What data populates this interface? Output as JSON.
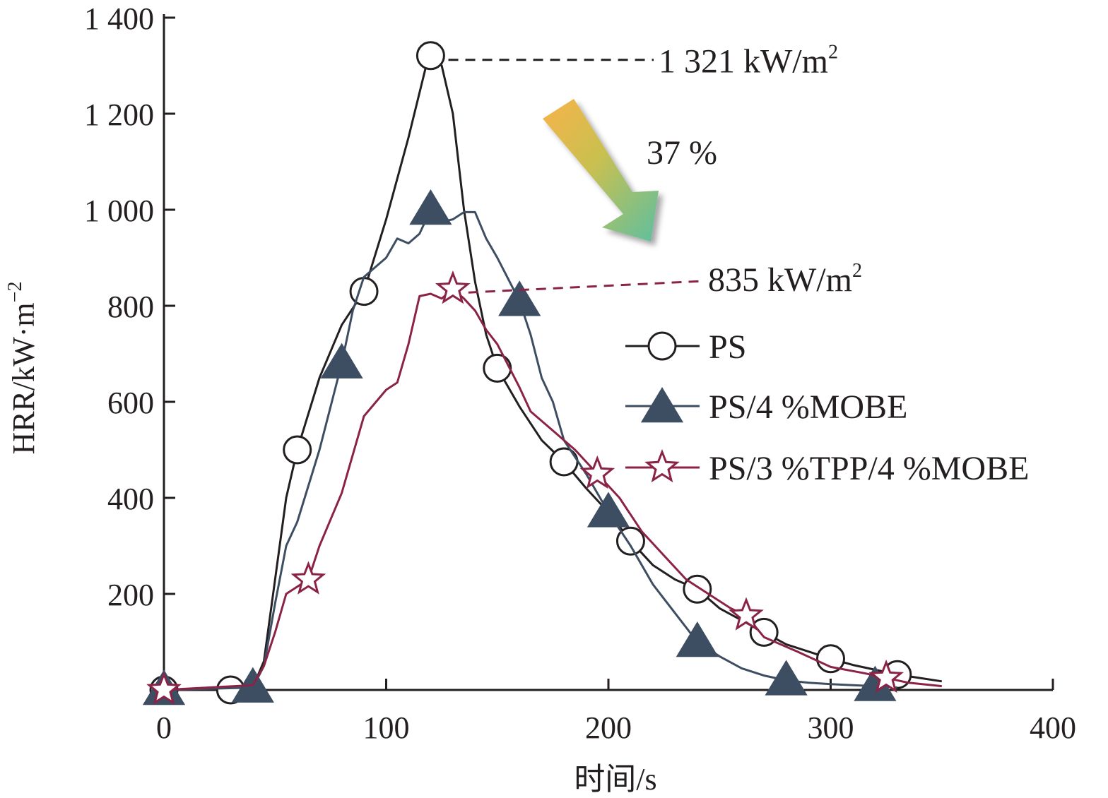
{
  "chart_data": {
    "type": "line",
    "title": "",
    "xlabel": "时间/s",
    "ylabel": "HRR/kW·m",
    "ylabel_sup": "−2",
    "xlim": [
      0,
      400
    ],
    "ylim": [
      0,
      1400
    ],
    "xticks": [
      0,
      100,
      200,
      300,
      400
    ],
    "yticks": [
      200,
      400,
      600,
      800,
      1000,
      1200,
      1400
    ],
    "xtick_labels": [
      "0",
      "100",
      "200",
      "300",
      "400"
    ],
    "ytick_labels": [
      "200",
      "400",
      "600",
      "800",
      "1 000",
      "1 200",
      "1 400"
    ],
    "grid": false,
    "legend_position": "right",
    "series": [
      {
        "name": "PS",
        "marker": "circle",
        "color": "#231f20",
        "line": [
          [
            0,
            0
          ],
          [
            30,
            0
          ],
          [
            40,
            5
          ],
          [
            45,
            60
          ],
          [
            50,
            230
          ],
          [
            55,
            400
          ],
          [
            60,
            500
          ],
          [
            70,
            650
          ],
          [
            80,
            760
          ],
          [
            90,
            830
          ],
          [
            100,
            980
          ],
          [
            110,
            1150
          ],
          [
            118,
            1300
          ],
          [
            120,
            1321
          ],
          [
            125,
            1300
          ],
          [
            130,
            1200
          ],
          [
            135,
            1000
          ],
          [
            140,
            850
          ],
          [
            145,
            740
          ],
          [
            150,
            670
          ],
          [
            160,
            590
          ],
          [
            170,
            520
          ],
          [
            180,
            475
          ],
          [
            190,
            420
          ],
          [
            200,
            370
          ],
          [
            210,
            310
          ],
          [
            220,
            260
          ],
          [
            230,
            230
          ],
          [
            240,
            210
          ],
          [
            250,
            170
          ],
          [
            260,
            145
          ],
          [
            270,
            120
          ],
          [
            280,
            95
          ],
          [
            290,
            80
          ],
          [
            300,
            65
          ],
          [
            310,
            52
          ],
          [
            320,
            42
          ],
          [
            330,
            32
          ],
          [
            340,
            25
          ],
          [
            350,
            18
          ]
        ],
        "markers": [
          [
            0,
            0
          ],
          [
            30,
            0
          ],
          [
            60,
            500
          ],
          [
            90,
            830
          ],
          [
            120,
            1321
          ],
          [
            150,
            670
          ],
          [
            180,
            475
          ],
          [
            210,
            310
          ],
          [
            240,
            210
          ],
          [
            270,
            120
          ],
          [
            300,
            65
          ],
          [
            330,
            32
          ]
        ]
      },
      {
        "name": "PS/4 %MOBE",
        "marker": "triangle",
        "color": "#3d4e62",
        "line": [
          [
            0,
            0
          ],
          [
            40,
            5
          ],
          [
            45,
            50
          ],
          [
            50,
            180
          ],
          [
            55,
            300
          ],
          [
            60,
            350
          ],
          [
            70,
            500
          ],
          [
            80,
            680
          ],
          [
            85,
            790
          ],
          [
            90,
            860
          ],
          [
            100,
            900
          ],
          [
            105,
            940
          ],
          [
            110,
            930
          ],
          [
            115,
            950
          ],
          [
            120,
            1000
          ],
          [
            125,
            975
          ],
          [
            130,
            980
          ],
          [
            135,
            995
          ],
          [
            140,
            995
          ],
          [
            145,
            940
          ],
          [
            150,
            900
          ],
          [
            160,
            810
          ],
          [
            165,
            740
          ],
          [
            170,
            650
          ],
          [
            175,
            600
          ],
          [
            180,
            520
          ],
          [
            190,
            450
          ],
          [
            200,
            370
          ],
          [
            210,
            300
          ],
          [
            220,
            220
          ],
          [
            230,
            160
          ],
          [
            240,
            100
          ],
          [
            250,
            70
          ],
          [
            260,
            45
          ],
          [
            270,
            30
          ],
          [
            280,
            20
          ],
          [
            290,
            15
          ],
          [
            300,
            12
          ],
          [
            310,
            10
          ],
          [
            320,
            8
          ],
          [
            330,
            5
          ]
        ],
        "markers": [
          [
            0,
            0
          ],
          [
            40,
            5
          ],
          [
            80,
            680
          ],
          [
            120,
            1000
          ],
          [
            160,
            810
          ],
          [
            200,
            370
          ],
          [
            240,
            100
          ],
          [
            280,
            20
          ],
          [
            320,
            8
          ]
        ]
      },
      {
        "name": "PS/3 %TPP/4 %MOBE",
        "marker": "star",
        "color": "#8b2346",
        "line": [
          [
            0,
            0
          ],
          [
            40,
            10
          ],
          [
            45,
            50
          ],
          [
            50,
            120
          ],
          [
            55,
            200
          ],
          [
            60,
            215
          ],
          [
            65,
            230
          ],
          [
            70,
            300
          ],
          [
            80,
            410
          ],
          [
            90,
            570
          ],
          [
            100,
            625
          ],
          [
            105,
            640
          ],
          [
            110,
            720
          ],
          [
            115,
            820
          ],
          [
            120,
            825
          ],
          [
            125,
            815
          ],
          [
            130,
            835
          ],
          [
            135,
            815
          ],
          [
            140,
            790
          ],
          [
            145,
            750
          ],
          [
            150,
            720
          ],
          [
            160,
            630
          ],
          [
            165,
            580
          ],
          [
            175,
            540
          ],
          [
            185,
            500
          ],
          [
            195,
            450
          ],
          [
            205,
            400
          ],
          [
            215,
            330
          ],
          [
            225,
            280
          ],
          [
            235,
            230
          ],
          [
            245,
            200
          ],
          [
            255,
            170
          ],
          [
            262,
            155
          ],
          [
            270,
            110
          ],
          [
            285,
            80
          ],
          [
            300,
            48
          ],
          [
            315,
            35
          ],
          [
            325,
            25
          ],
          [
            335,
            15
          ],
          [
            350,
            8
          ]
        ],
        "markers": [
          [
            0,
            0
          ],
          [
            65,
            230
          ],
          [
            130,
            835
          ],
          [
            195,
            450
          ],
          [
            262,
            155
          ],
          [
            325,
            25
          ]
        ]
      }
    ],
    "annotations": {
      "peak_ps_value": "1 321 kW/m",
      "peak_ps_sup": "2",
      "peak_tpp_value": "835 kW/m",
      "peak_tpp_sup": "2",
      "reduction": "37 %"
    }
  }
}
